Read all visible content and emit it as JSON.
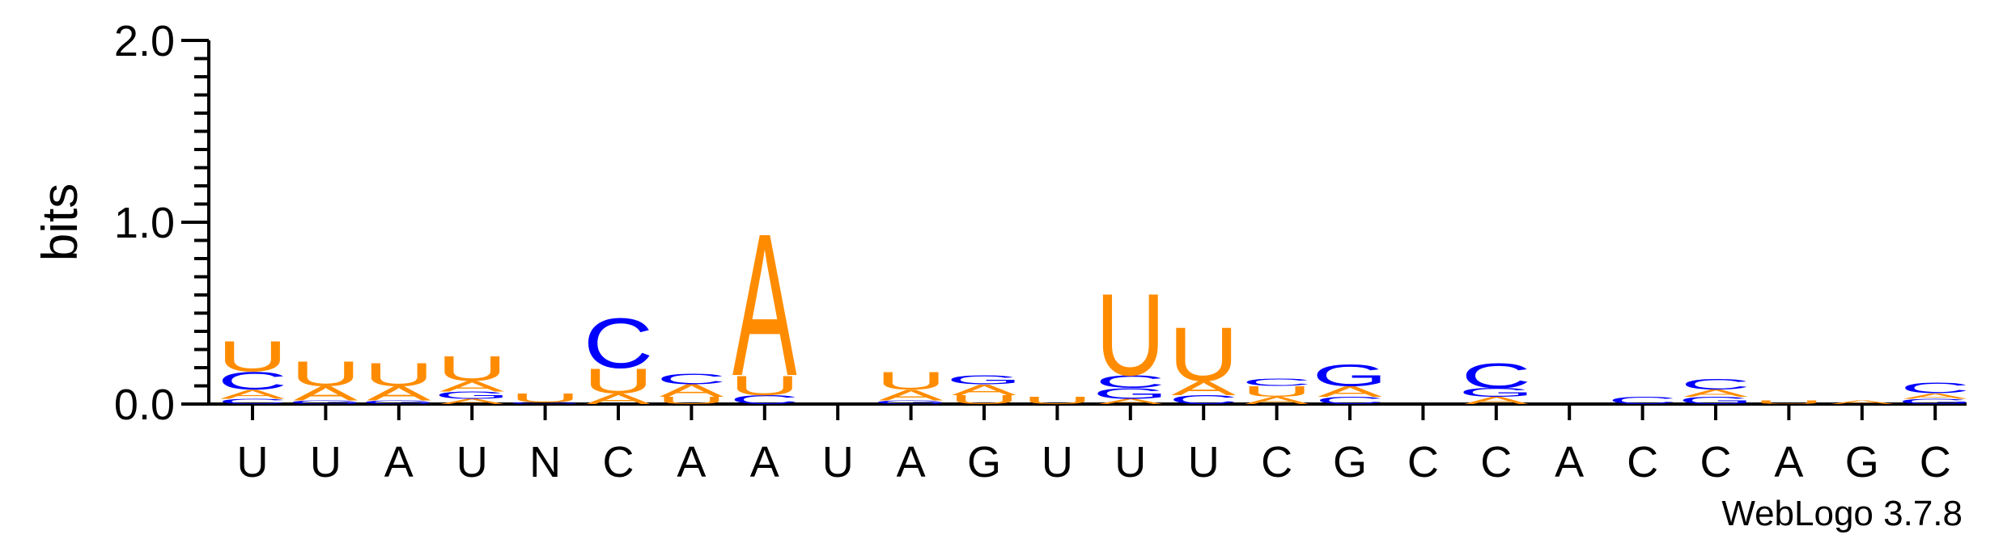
{
  "chart_data": {
    "type": "sequence-logo",
    "ylabel": "bits",
    "ylim": [
      0,
      2.0
    ],
    "yticks": [
      "0.0",
      "1.0",
      "2.0"
    ],
    "colors": {
      "A": "#ff8c00",
      "U": "#ff8c00",
      "C": "#0000ff",
      "G": "#0000ff"
    },
    "credit": "WebLogo 3.7.8",
    "positions": [
      {
        "label": "U",
        "stack": [
          [
            "C",
            0.03
          ],
          [
            "A",
            0.05
          ],
          [
            "C",
            0.1
          ],
          [
            "U",
            0.17
          ]
        ]
      },
      {
        "label": "U",
        "stack": [
          [
            "G",
            0.02
          ],
          [
            "A",
            0.08
          ],
          [
            "U",
            0.14
          ]
        ]
      },
      {
        "label": "A",
        "stack": [
          [
            "G",
            0.02
          ],
          [
            "A",
            0.08
          ],
          [
            "U",
            0.13
          ]
        ]
      },
      {
        "label": "U",
        "stack": [
          [
            "A",
            0.03
          ],
          [
            "G",
            0.04
          ],
          [
            "A",
            0.06
          ],
          [
            "U",
            0.14
          ]
        ]
      },
      {
        "label": "N",
        "stack": [
          [
            "G",
            0.01
          ],
          [
            "U",
            0.05
          ]
        ]
      },
      {
        "label": "C",
        "stack": [
          [
            "A",
            0.06
          ],
          [
            "U",
            0.14
          ],
          [
            "C",
            0.28
          ]
        ]
      },
      {
        "label": "A",
        "stack": [
          [
            "U",
            0.04
          ],
          [
            "A",
            0.07
          ],
          [
            "C",
            0.06
          ]
        ]
      },
      {
        "label": "A",
        "stack": [
          [
            "C",
            0.05
          ],
          [
            "U",
            0.11
          ],
          [
            "A",
            0.8
          ]
        ]
      },
      {
        "label": "U",
        "stack": []
      },
      {
        "label": "A",
        "stack": [
          [
            "G",
            0.02
          ],
          [
            "A",
            0.06
          ],
          [
            "U",
            0.1
          ]
        ]
      },
      {
        "label": "G",
        "stack": [
          [
            "U",
            0.05
          ],
          [
            "A",
            0.06
          ],
          [
            "G",
            0.05
          ]
        ]
      },
      {
        "label": "U",
        "stack": [
          [
            "U",
            0.04
          ]
        ]
      },
      {
        "label": "U",
        "stack": [
          [
            "A",
            0.03
          ],
          [
            "G",
            0.06
          ],
          [
            "C",
            0.07
          ],
          [
            "U",
            0.46
          ]
        ]
      },
      {
        "label": "U",
        "stack": [
          [
            "C",
            0.05
          ],
          [
            "A",
            0.08
          ],
          [
            "U",
            0.3
          ]
        ]
      },
      {
        "label": "C",
        "stack": [
          [
            "A",
            0.04
          ],
          [
            "U",
            0.06
          ],
          [
            "C",
            0.04
          ]
        ]
      },
      {
        "label": "G",
        "stack": [
          [
            "C",
            0.04
          ],
          [
            "A",
            0.06
          ],
          [
            "G",
            0.12
          ]
        ]
      },
      {
        "label": "C",
        "stack": []
      },
      {
        "label": "C",
        "stack": [
          [
            "A",
            0.04
          ],
          [
            "G",
            0.05
          ],
          [
            "C",
            0.14
          ]
        ]
      },
      {
        "label": "A",
        "stack": []
      },
      {
        "label": "C",
        "stack": [
          [
            "C",
            0.04
          ]
        ]
      },
      {
        "label": "C",
        "stack": [
          [
            "G",
            0.04
          ],
          [
            "A",
            0.04
          ],
          [
            "C",
            0.06
          ]
        ]
      },
      {
        "label": "A",
        "stack": [
          [
            "U",
            0.02
          ]
        ]
      },
      {
        "label": "G",
        "stack": [
          [
            "A",
            0.02
          ]
        ]
      },
      {
        "label": "C",
        "stack": [
          [
            "G",
            0.03
          ],
          [
            "A",
            0.03
          ],
          [
            "C",
            0.06
          ]
        ]
      }
    ]
  }
}
